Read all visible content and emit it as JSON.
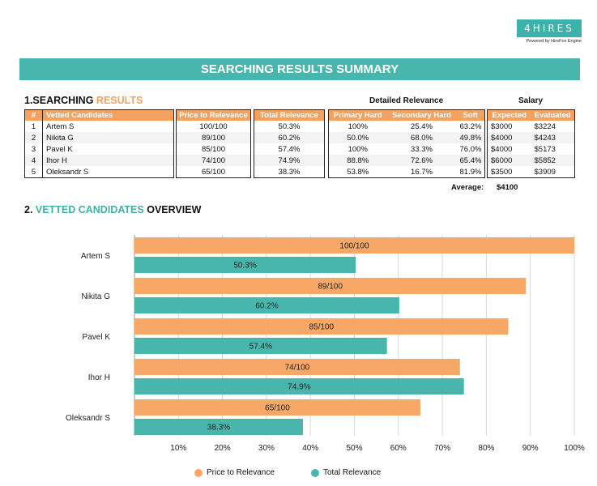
{
  "logo": {
    "name": "4HIRES",
    "tagline": "Powered by HireFox Engine"
  },
  "banner": {
    "title": "SEARCHING RESULTS SUMMARY"
  },
  "section1": {
    "prefix": "1.SEARCHING",
    "highlight": "RESULTS"
  },
  "headers": {
    "detailed": "Detailed Relevance",
    "salary": "Salary"
  },
  "table": {
    "columns": {
      "num": "#",
      "candidate": "Vetted Candidates",
      "price": "Price to Relevance",
      "total": "Total Relevance",
      "primary": "Primary Hard",
      "secondary": "Secondary Hard",
      "soft": "Soft",
      "expected": "Expected",
      "evaluated": "Evaluated"
    },
    "rows": [
      {
        "num": "1",
        "name": "Artem S",
        "price": "100/100",
        "total": "50.3%",
        "primary": "100%",
        "secondary": "25.4%",
        "soft": "63.2%",
        "expected": "$3000",
        "evaluated": "$3224"
      },
      {
        "num": "2",
        "name": "Nikita G",
        "price": "89/100",
        "total": "60.2%",
        "primary": "50.0%",
        "secondary": "68.0%",
        "soft": "49.8%",
        "expected": "$4000",
        "evaluated": "$4243"
      },
      {
        "num": "3",
        "name": "Pavel K",
        "price": "85/100",
        "total": "57.4%",
        "primary": "100%",
        "secondary": "33.3%",
        "soft": "76.0%",
        "expected": "$4000",
        "evaluated": "$5173"
      },
      {
        "num": "4",
        "name": "Ihor H",
        "price": "74/100",
        "total": "74.9%",
        "primary": "88.8%",
        "secondary": "72.6%",
        "soft": "65.4%",
        "expected": "$6000",
        "evaluated": "$5852"
      },
      {
        "num": "5",
        "name": "Oleksandr S",
        "price": "65/100",
        "total": "38.3%",
        "primary": "53.8%",
        "secondary": "16.7%",
        "soft": "81.9%",
        "expected": "$3500",
        "evaluated": "$3909"
      }
    ],
    "average_label": "Average:",
    "average_value": "$4100"
  },
  "section2": {
    "prefix": "2.",
    "highlight": "VETTED CANDIDATES",
    "suffix": "OVERVIEW"
  },
  "colors": {
    "orange": "#f8a866",
    "teal": "#49b6ad",
    "header_orange": "#f5a260"
  },
  "chart_data": {
    "type": "bar",
    "orientation": "horizontal",
    "categories": [
      "Artem S",
      "Nikita G",
      "Pavel K",
      "Ihor H",
      "Oleksandr S"
    ],
    "series": [
      {
        "name": "Price to Relevance",
        "values": [
          100,
          89,
          85,
          74,
          65
        ],
        "labels": [
          "100/100",
          "89/100",
          "85/100",
          "74/100",
          "65/100"
        ]
      },
      {
        "name": "Total Relevance",
        "values": [
          50.3,
          60.2,
          57.4,
          74.9,
          38.3
        ],
        "labels": [
          "50.3%",
          "60.2%",
          "57.4%",
          "74.9%",
          "38.3%"
        ]
      }
    ],
    "xlim": [
      0,
      100
    ],
    "xticks": [
      "10%",
      "20%",
      "30%",
      "40%",
      "50%",
      "60%",
      "70%",
      "80%",
      "90%",
      "100%"
    ],
    "legend": "bottom",
    "grid": true
  }
}
